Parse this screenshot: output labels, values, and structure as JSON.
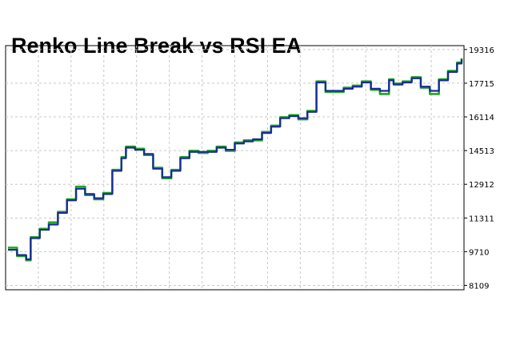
{
  "chart_data": {
    "type": "line",
    "title": "Renko Line Break vs RSI EA",
    "xlabel": "",
    "ylabel": "",
    "ylim": [
      7900,
      19500
    ],
    "yticks": [
      8109,
      9710,
      11311,
      12912,
      14513,
      16114,
      17715,
      19316
    ],
    "grid": true,
    "x": [
      0,
      2,
      4,
      5,
      7,
      9,
      11,
      13,
      15,
      17,
      19,
      21,
      23,
      25,
      26,
      28,
      30,
      32,
      34,
      36,
      38,
      40,
      42,
      44,
      46,
      48,
      50,
      52,
      54,
      56,
      58,
      60,
      62,
      64,
      66,
      68,
      70,
      72,
      74,
      76,
      78,
      80,
      82,
      84,
      85,
      87,
      89,
      91,
      93,
      95,
      97,
      99,
      100
    ],
    "series": [
      {
        "color": "#1fa81f",
        "values": [
          9900,
          9500,
          9300,
          10400,
          10800,
          11100,
          11600,
          12200,
          12800,
          12400,
          12200,
          12500,
          13600,
          14200,
          14700,
          14600,
          14300,
          13700,
          13200,
          13600,
          14200,
          14500,
          14400,
          14500,
          14700,
          14500,
          14900,
          15000,
          15000,
          15400,
          15700,
          16100,
          16200,
          16000,
          16400,
          17800,
          17300,
          17300,
          17500,
          17600,
          17800,
          17400,
          17200,
          17900,
          17700,
          17800,
          18000,
          17500,
          17200,
          17900,
          18300,
          18700,
          18900
        ]
      },
      {
        "color": "#1a2a9a",
        "values": [
          9800,
          9550,
          9350,
          10350,
          10750,
          11000,
          11550,
          12150,
          12700,
          12450,
          12250,
          12450,
          13550,
          14150,
          14650,
          14550,
          14350,
          13650,
          13250,
          13550,
          14150,
          14450,
          14450,
          14450,
          14650,
          14550,
          14850,
          14950,
          15050,
          15350,
          15650,
          16050,
          16150,
          16050,
          16350,
          17750,
          17350,
          17350,
          17450,
          17550,
          17750,
          17450,
          17350,
          17850,
          17650,
          17750,
          17950,
          17550,
          17350,
          17850,
          18250,
          18650,
          18850
        ]
      }
    ]
  }
}
